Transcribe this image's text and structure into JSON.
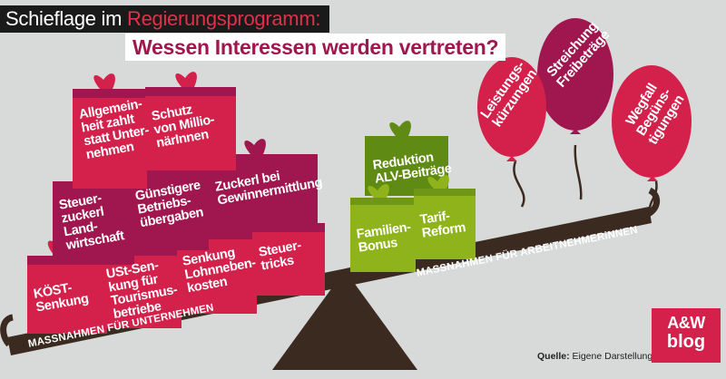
{
  "header": {
    "title_prefix": "Schieflage im ",
    "title_accent": "Regierungsprogramm:",
    "subtitle": "Wessen Interessen werden vertreten?"
  },
  "colors": {
    "background": "#d8d9d9",
    "magenta": "#a0174f",
    "red": "#d4214b",
    "green": "#8fb31a",
    "dark_green": "#5f8a14",
    "beam": "#3a2a20"
  },
  "gifts_left": [
    "Allgemein-\nheit zahlt\nstatt Unter-\nnehmen",
    "Schutz\nvon Millio-\nnärInnen",
    "Steuer-\nzuckerl\nLand-\nwirtschaft",
    "Günstigere\nBetriebs-\nübergaben",
    "Zuckerl bei\nGewinnermittlung",
    "KÖST-\nSenkung",
    "USt-Sen-\nkung für\nTourismus-\nbetriebe",
    "Senkung\nLohnneben-\nkosten",
    "Steuer-\ntricks"
  ],
  "gifts_right": [
    "Reduktion\nALV-Beiträge",
    "Familien-\nBonus",
    "Tarif-\nReform"
  ],
  "balloons": [
    "Leistungs-\nkürzungen",
    "Streichung\nFreibeträge",
    "Wegfall\nBegüns-\ntigungen"
  ],
  "beam": {
    "left_label": "MASSNAHMEN FÜR UNTERNEHMEN",
    "right_label": "MASSNAHMEN FÜR ARBEITNEHMERiNNEN"
  },
  "source": {
    "label": "Quelle:",
    "text": " Eigene Darstellung"
  },
  "logo": {
    "top": "A&W",
    "bottom": "blog"
  }
}
